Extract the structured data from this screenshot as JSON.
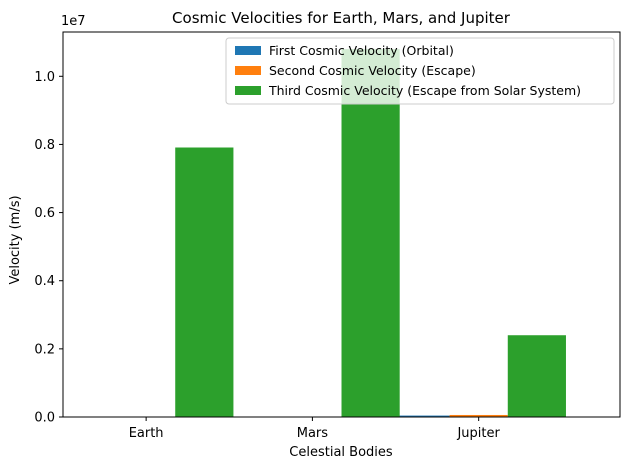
{
  "chart_data": {
    "type": "bar",
    "title": "Cosmic Velocities for Earth, Mars, and Jupiter",
    "xlabel": "Celestial Bodies",
    "ylabel": "Velocity (m/s)",
    "y_scale_label": "1e7",
    "categories": [
      "Earth",
      "Mars",
      "Jupiter"
    ],
    "ylim": [
      0,
      11300000
    ],
    "yticks": [
      0,
      2000000,
      4000000,
      6000000,
      8000000,
      10000000
    ],
    "ytick_labels": [
      "0.0",
      "0.2",
      "0.4",
      "0.6",
      "0.8",
      "1.0"
    ],
    "grid": false,
    "legend_position": "top-right",
    "series": [
      {
        "name": "First Cosmic Velocity (Orbital)",
        "color": "#1f77b4",
        "values": [
          7900,
          3550,
          42100
        ]
      },
      {
        "name": "Second Cosmic Velocity (Escape)",
        "color": "#ff7f0e",
        "values": [
          11200,
          5030,
          59500
        ]
      },
      {
        "name": "Third Cosmic Velocity (Escape from Solar System)",
        "color": "#2ca02c",
        "values": [
          7910000,
          10800000,
          2400000
        ]
      }
    ]
  }
}
